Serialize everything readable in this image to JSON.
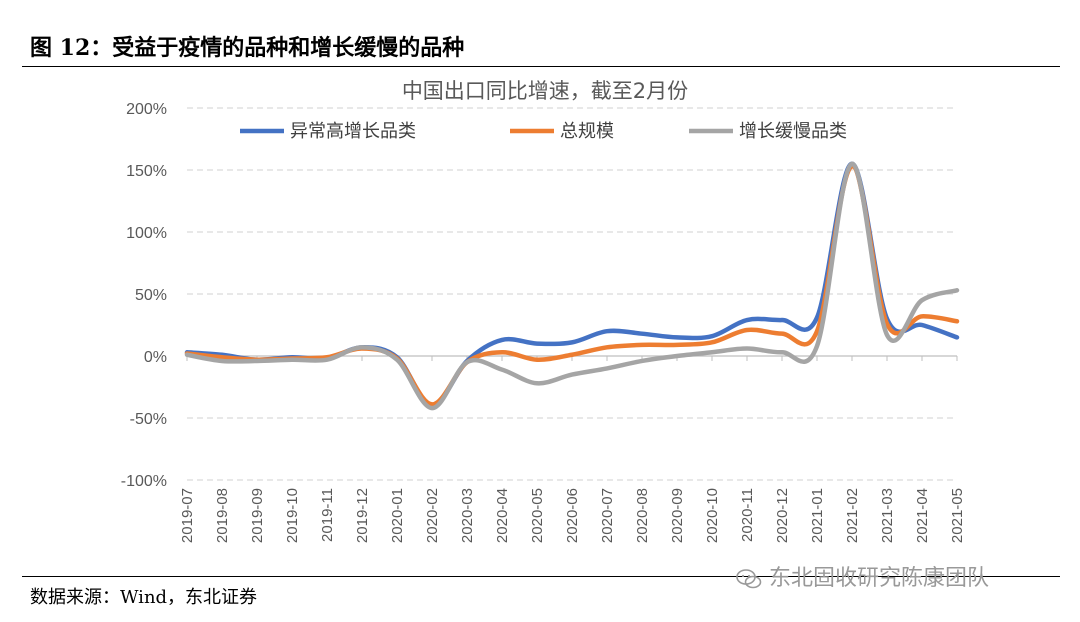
{
  "figure": {
    "title": "图 12：受益于疫情的品种和增长缓慢的品种",
    "source": "数据来源：Wind，东北证券",
    "watermark": "东北固收研究陈康团队"
  },
  "chart_data": {
    "type": "line",
    "title": "中国出口同比增速，截至2月份",
    "xlabel": "",
    "ylabel": "",
    "ylim": [
      -100,
      200
    ],
    "yticks": [
      "200%",
      "150%",
      "100%",
      "50%",
      "0%",
      "-50%",
      "-100%"
    ],
    "grid": true,
    "legend_position": "top",
    "categories": [
      "2019-07",
      "2019-08",
      "2019-09",
      "2019-10",
      "2019-11",
      "2019-12",
      "2020-01",
      "2020-02",
      "2020-03",
      "2020-04",
      "2020-05",
      "2020-06",
      "2020-07",
      "2020-08",
      "2020-09",
      "2020-10",
      "2020-11",
      "2020-12",
      "2021-01",
      "2021-02",
      "2021-03",
      "2021-04",
      "2021-05"
    ],
    "series": [
      {
        "name": "异常高增长品类",
        "color": "#4472C4",
        "values": [
          3,
          1,
          -3,
          -1,
          -2,
          7,
          -1,
          -40,
          -4,
          13,
          10,
          11,
          20,
          18,
          15,
          16,
          29,
          29,
          31,
          155,
          30,
          25,
          15
        ]
      },
      {
        "name": "总规模",
        "color": "#ED7D31",
        "values": [
          2,
          -1,
          -3,
          -2,
          -1,
          6,
          -2,
          -39,
          -5,
          3,
          -3,
          1,
          7,
          9,
          9,
          11,
          21,
          18,
          20,
          153,
          26,
          32,
          28
        ]
      },
      {
        "name": "增长缓慢品类",
        "color": "#A5A5A5",
        "values": [
          1,
          -4,
          -4,
          -3,
          -3,
          7,
          -3,
          -42,
          -5,
          -11,
          -22,
          -15,
          -10,
          -4,
          0,
          3,
          6,
          3,
          8,
          155,
          17,
          45,
          53
        ]
      }
    ]
  }
}
